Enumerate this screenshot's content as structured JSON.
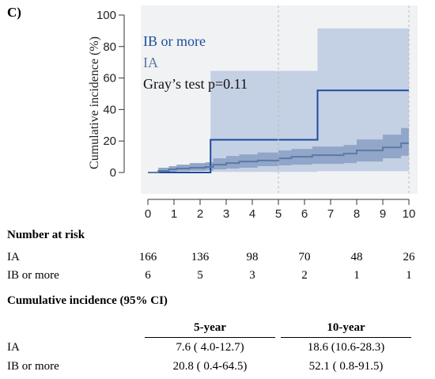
{
  "panel_label": "C)",
  "chart_data": {
    "type": "line",
    "subtype": "step",
    "title": "",
    "xlabel": "",
    "ylabel": "Cumulative incidence (%)",
    "xlim": [
      -0.3,
      10.3
    ],
    "ylim": [
      -7,
      100
    ],
    "x_ticks": [
      0,
      1,
      2,
      3,
      4,
      5,
      6,
      7,
      8,
      9,
      10
    ],
    "y_ticks": [
      0,
      20,
      40,
      60,
      80,
      100
    ],
    "vlines": [
      5,
      10
    ],
    "colors": {
      "ia_line": "#5c7aa6",
      "ia_band": "#91a6c8",
      "ib_line": "#1d4d9c",
      "ib_band": "#c4d0e4"
    },
    "series": [
      {
        "name": "IB or more",
        "x": [
          0,
          2.4,
          2.4,
          6.5,
          6.5,
          10
        ],
        "y": [
          0,
          0,
          20.8,
          20.8,
          52.1,
          52.1
        ],
        "ci_x": [
          0,
          2.4,
          2.4,
          6.5,
          6.5,
          10
        ],
        "ci_lower": [
          0,
          0,
          0.4,
          0.4,
          0.8,
          0.8
        ],
        "ci_upper": [
          0,
          0,
          64.5,
          64.5,
          91.5,
          91.5
        ]
      },
      {
        "name": "IA",
        "x": [
          0,
          0.4,
          0.8,
          1.1,
          1.6,
          2.2,
          2.5,
          3.0,
          3.5,
          4.2,
          5.0,
          5.5,
          6.3,
          7.5,
          8.0,
          9.0,
          9.7,
          10
        ],
        "y": [
          0,
          1,
          2,
          2.5,
          3,
          3.5,
          5,
          6,
          7,
          7.6,
          9,
          10,
          11,
          12,
          14,
          16,
          18.6,
          18.6
        ],
        "ci_lower": [
          0,
          0,
          0.5,
          0.8,
          1,
          1.2,
          2,
          2.5,
          3,
          4.0,
          4.5,
          5,
          5.5,
          6,
          7,
          9,
          10.6,
          10.6
        ],
        "ci_upper": [
          0,
          3,
          4,
          5,
          6,
          6.5,
          9,
          10.5,
          11.5,
          12.7,
          14,
          15,
          16.5,
          17.5,
          21,
          24,
          28.3,
          28.3
        ]
      }
    ],
    "legend": [
      "IB or more",
      "IA"
    ],
    "annotation": "Gray’s test p=0.11"
  },
  "risk_table": {
    "title": "Number at risk",
    "rows": [
      {
        "label": "IA",
        "values": [
          "166",
          "136",
          "98",
          "70",
          "48",
          "26"
        ]
      },
      {
        "label": "IB or more",
        "values": [
          "6",
          "5",
          "3",
          "2",
          "1",
          "1"
        ]
      }
    ]
  },
  "ci_table": {
    "title": "Cumulative incidence (95% CI)",
    "headers": [
      "5-year",
      "10-year"
    ],
    "rows": [
      {
        "label": "IA",
        "values": [
          "7.6 ( 4.0-12.7)",
          "18.6 (10.6-28.3)"
        ]
      },
      {
        "label": "IB or more",
        "values": [
          "20.8 ( 0.4-64.5)",
          "52.1 ( 0.8-91.5)"
        ]
      }
    ]
  }
}
